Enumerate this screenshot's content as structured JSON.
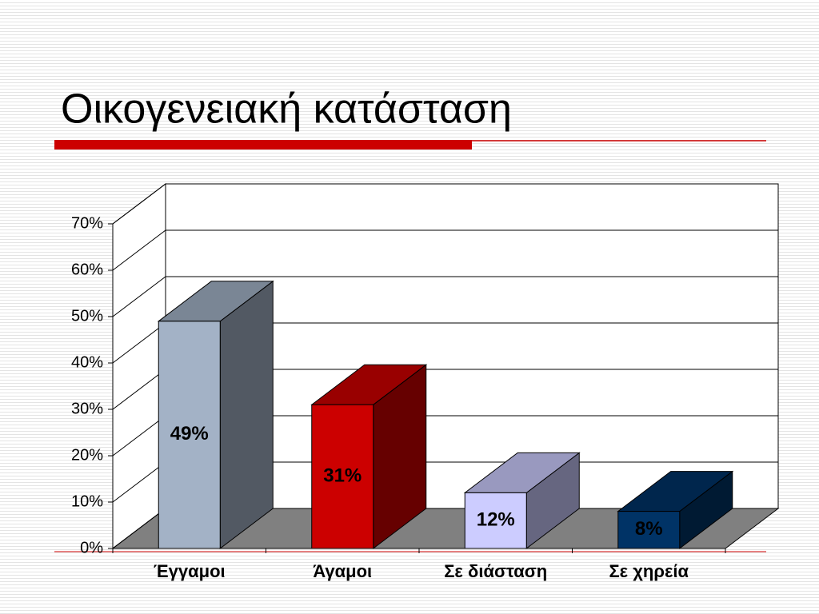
{
  "chart_data": {
    "type": "bar3d",
    "title": "Οικογενειακή κατάσταση",
    "categories": [
      "Έγγαμοι",
      "Άγαμοι",
      "Σε διάσταση",
      "Σε χηρεία"
    ],
    "values": [
      49,
      31,
      12,
      8
    ],
    "value_labels": [
      "49%",
      "31%",
      "12%",
      "8%"
    ],
    "colors": [
      "#a3b2c6",
      "#cc0000",
      "#ccccff",
      "#003366"
    ],
    "ylim": [
      0,
      70
    ],
    "yticks": [
      {
        "value": 0,
        "label": "0%"
      },
      {
        "value": 10,
        "label": "10%"
      },
      {
        "value": 20,
        "label": "20%"
      },
      {
        "value": 30,
        "label": "30%"
      },
      {
        "value": 40,
        "label": "40%"
      },
      {
        "value": 50,
        "label": "50%"
      },
      {
        "value": 60,
        "label": "60%"
      },
      {
        "value": 70,
        "label": "70%"
      }
    ],
    "grid": true
  }
}
